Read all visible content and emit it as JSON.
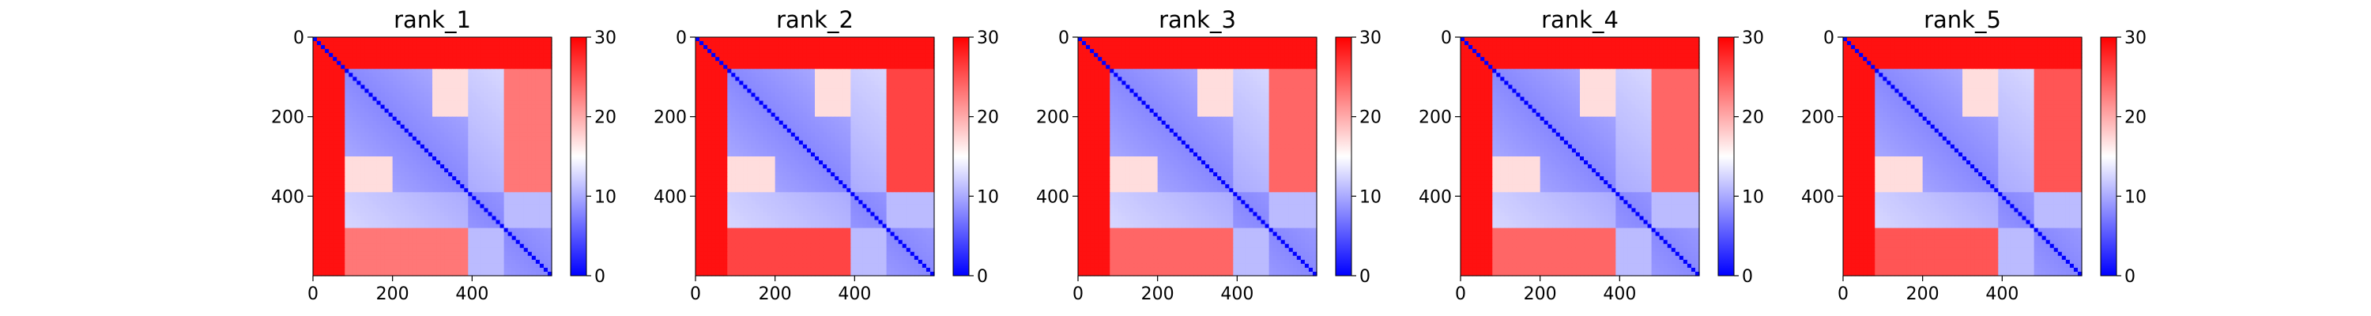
{
  "chart_data": {
    "type": "heatmap",
    "colormap": {
      "name": "bwr",
      "low": "#0000ff",
      "mid": "#ffffff",
      "high": "#ff0000"
    },
    "colorbar": {
      "range": [
        0,
        30
      ],
      "ticks": [
        "0",
        "10",
        "20",
        "30"
      ]
    },
    "x_range": [
      0,
      600
    ],
    "y_range": [
      0,
      600
    ],
    "x_ticks": [
      {
        "v": 0,
        "label": "0"
      },
      {
        "v": 200,
        "label": "200"
      },
      {
        "v": 400,
        "label": "400"
      }
    ],
    "y_ticks": [
      {
        "v": 0,
        "label": "0"
      },
      {
        "v": 200,
        "label": "200"
      },
      {
        "v": 400,
        "label": "400"
      }
    ],
    "grid": false,
    "shared_pattern": {
      "n_residues": 600,
      "diagonal_value": 0,
      "domain_boundaries": [
        80,
        390,
        480
      ],
      "within_domain_value": 8,
      "between_domain_value": 27,
      "n_terminal_region_value": 29,
      "domain_2_tail_value": 17
    },
    "panels": [
      {
        "title": "rank_1",
        "lower_block_value": 23
      },
      {
        "title": "rank_2",
        "lower_block_value": 26
      },
      {
        "title": "rank_3",
        "lower_block_value": 24
      },
      {
        "title": "rank_4",
        "lower_block_value": 24
      },
      {
        "title": "rank_5",
        "lower_block_value": 25
      }
    ]
  }
}
